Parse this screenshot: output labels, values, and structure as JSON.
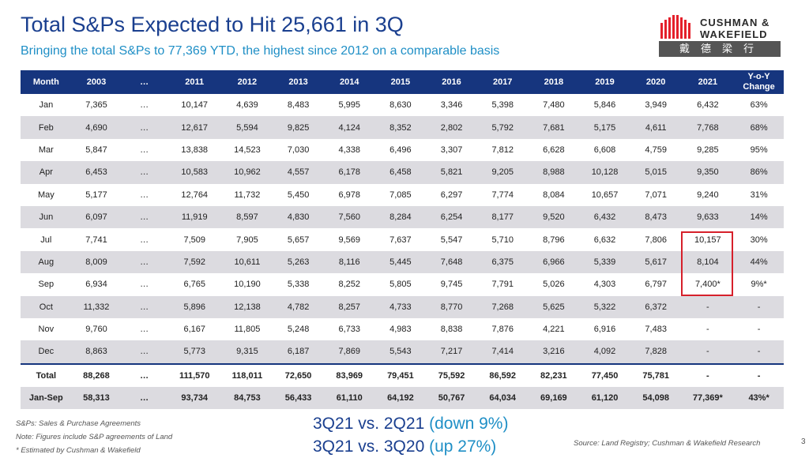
{
  "title": "Total S&Ps Expected to Hit 25,661 in 3Q",
  "subtitle": "Bringing the total S&Ps to 77,369 YTD, the highest since 2012 on a comparable basis",
  "logo": {
    "brand_line1": "CUSHMAN &",
    "brand_line2": "WAKEFIELD",
    "chinese": "戴德梁行",
    "brand_color": "#e4202b"
  },
  "table": {
    "headers": [
      "Month",
      "2003",
      "…",
      "2011",
      "2012",
      "2013",
      "2014",
      "2015",
      "2016",
      "2017",
      "2018",
      "2019",
      "2020",
      "2021",
      "Y-o-Y Change"
    ],
    "rows": [
      [
        "Jan",
        "7,365",
        "…",
        "10,147",
        "4,639",
        "8,483",
        "5,995",
        "8,630",
        "3,346",
        "5,398",
        "7,480",
        "5,846",
        "3,949",
        "6,432",
        "63%"
      ],
      [
        "Feb",
        "4,690",
        "…",
        "12,617",
        "5,594",
        "9,825",
        "4,124",
        "8,352",
        "2,802",
        "5,792",
        "7,681",
        "5,175",
        "4,611",
        "7,768",
        "68%"
      ],
      [
        "Mar",
        "5,847",
        "…",
        "13,838",
        "14,523",
        "7,030",
        "4,338",
        "6,496",
        "3,307",
        "7,812",
        "6,628",
        "6,608",
        "4,759",
        "9,285",
        "95%"
      ],
      [
        "Apr",
        "6,453",
        "…",
        "10,583",
        "10,962",
        "4,557",
        "6,178",
        "6,458",
        "5,821",
        "9,205",
        "8,988",
        "10,128",
        "5,015",
        "9,350",
        "86%"
      ],
      [
        "May",
        "5,177",
        "…",
        "12,764",
        "11,732",
        "5,450",
        "6,978",
        "7,085",
        "6,297",
        "7,774",
        "8,084",
        "10,657",
        "7,071",
        "9,240",
        "31%"
      ],
      [
        "Jun",
        "6,097",
        "…",
        "11,919",
        "8,597",
        "4,830",
        "7,560",
        "8,284",
        "6,254",
        "8,177",
        "9,520",
        "6,432",
        "8,473",
        "9,633",
        "14%"
      ],
      [
        "Jul",
        "7,741",
        "…",
        "7,509",
        "7,905",
        "5,657",
        "9,569",
        "7,637",
        "5,547",
        "5,710",
        "8,796",
        "6,632",
        "7,806",
        "10,157",
        "30%"
      ],
      [
        "Aug",
        "8,009",
        "…",
        "7,592",
        "10,611",
        "5,263",
        "8,116",
        "5,445",
        "7,648",
        "6,375",
        "6,966",
        "5,339",
        "5,617",
        "8,104",
        "44%"
      ],
      [
        "Sep",
        "6,934",
        "…",
        "6,765",
        "10,190",
        "5,338",
        "8,252",
        "5,805",
        "9,745",
        "7,791",
        "5,026",
        "4,303",
        "6,797",
        "7,400*",
        "9%*"
      ],
      [
        "Oct",
        "11,332",
        "…",
        "5,896",
        "12,138",
        "4,782",
        "8,257",
        "4,733",
        "8,770",
        "7,268",
        "5,625",
        "5,322",
        "6,372",
        "-",
        "-"
      ],
      [
        "Nov",
        "9,760",
        "…",
        "6,167",
        "11,805",
        "5,248",
        "6,733",
        "4,983",
        "8,838",
        "7,876",
        "4,221",
        "6,916",
        "7,483",
        "-",
        "-"
      ],
      [
        "Dec",
        "8,863",
        "…",
        "5,773",
        "9,315",
        "6,187",
        "7,869",
        "5,543",
        "7,217",
        "7,414",
        "3,216",
        "4,092",
        "7,828",
        "-",
        "-"
      ]
    ],
    "total_row": [
      "Total",
      "88,268",
      "…",
      "111,570",
      "118,011",
      "72,650",
      "83,969",
      "79,451",
      "75,592",
      "86,592",
      "82,231",
      "77,450",
      "75,781",
      "-",
      "-"
    ],
    "jansep_row": [
      "Jan-Sep",
      "58,313",
      "…",
      "93,734",
      "84,753",
      "56,433",
      "61,110",
      "64,192",
      "50,767",
      "64,034",
      "69,169",
      "61,120",
      "54,098",
      "77,369*",
      "43%*"
    ]
  },
  "footnotes": [
    "S&Ps: Sales & Purchase Agreements",
    "Note: Figures include S&P agreements of Land",
    "* Estimated by Cushman & Wakefield"
  ],
  "comparisons": [
    {
      "label": "3Q21 vs. 2Q21",
      "change": "(down 9%)"
    },
    {
      "label": "3Q21 vs. 3Q20",
      "change": "(up 27%)"
    }
  ],
  "source": "Source: Land Registry; Cushman & Wakefield Research",
  "page_number": "3"
}
